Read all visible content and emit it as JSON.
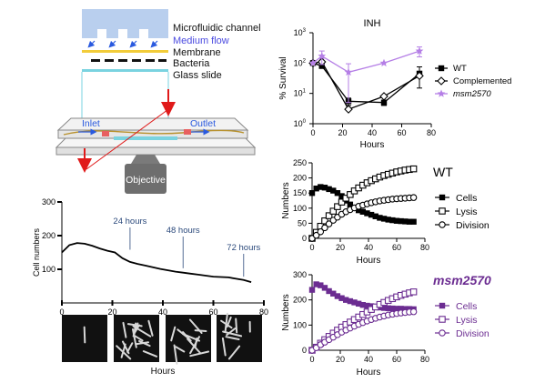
{
  "schematic": {
    "labels": {
      "channel": "Microfluidic channel",
      "flow": "Medium flow",
      "membrane": "Membrane",
      "bacteria": "Bacteria",
      "glass": "Glass slide",
      "inlet": "Inlet",
      "outlet": "Outlet",
      "objective": "Objective"
    },
    "colors": {
      "channel": "#b9cfee",
      "flow_text": "#4a4ae0",
      "membrane": "#f2cc3a",
      "glass": "#7ad3e0",
      "arrow_red": "#e01a1a",
      "objective": "#6e6e6e"
    }
  },
  "thumbnails": {
    "xlabel": "Hours",
    "count": 4
  },
  "chart_data": [
    {
      "id": "cell-numbers",
      "type": "line",
      "title": "",
      "xlabel": "",
      "ylabel": "Cell numbers",
      "xlim": [
        0,
        80
      ],
      "ylim": [
        0,
        300
      ],
      "xticks": [
        0,
        20,
        40,
        60,
        80
      ],
      "yticks": [
        100,
        200,
        300
      ],
      "series": [
        {
          "x": [
            0,
            3,
            6,
            9,
            12,
            15,
            18,
            21,
            24,
            27,
            30,
            33,
            36,
            39,
            42,
            45,
            48,
            51,
            54,
            57,
            60,
            63,
            66,
            69,
            72,
            75
          ],
          "y": [
            150,
            172,
            178,
            176,
            170,
            162,
            155,
            150,
            133,
            122,
            116,
            111,
            106,
            101,
            97,
            93,
            90,
            87,
            84,
            81,
            78,
            77,
            76,
            72,
            68,
            62
          ]
        }
      ],
      "annotations": [
        {
          "text": "24 hours",
          "x": 27,
          "y": 150
        },
        {
          "text": "48 hours",
          "x": 48,
          "y": 95
        },
        {
          "text": "72 hours",
          "x": 72,
          "y": 70
        }
      ],
      "colors": {
        "line": "#000000",
        "annotation": "#2c4a7c"
      }
    },
    {
      "id": "inh-survival",
      "type": "line",
      "title": "INH",
      "xlabel": "Hours",
      "ylabel": "% Survival",
      "xlim": [
        0,
        80
      ],
      "yscale": "log",
      "ylim": [
        1,
        1000
      ],
      "xticks": [
        0,
        20,
        40,
        60,
        80
      ],
      "ytick_labels": [
        "10^0",
        "10^1",
        "10^2",
        "10^3"
      ],
      "legend_position": "right",
      "series": [
        {
          "name": "WT",
          "marker": "filled-square",
          "color": "#000000",
          "x": [
            0,
            6,
            24,
            48,
            72
          ],
          "y": [
            100,
            80,
            5.5,
            5,
            45
          ],
          "err": [
            0,
            0,
            1.5,
            1,
            30
          ]
        },
        {
          "name": "Complemented",
          "marker": "open-diamond",
          "color": "#000000",
          "x": [
            0,
            6,
            24,
            48,
            72
          ],
          "y": [
            100,
            110,
            3,
            8,
            38
          ],
          "err": [
            0,
            0,
            0,
            0,
            0
          ]
        },
        {
          "name": "msm2570",
          "marker": "star",
          "color": "#b57fe6",
          "x": [
            0,
            6,
            24,
            48,
            72
          ],
          "y": [
            100,
            170,
            50,
            100,
            250
          ],
          "err": [
            0,
            80,
            45,
            0,
            90
          ]
        }
      ]
    },
    {
      "id": "wt-dynamics",
      "type": "line",
      "title": "WT",
      "xlabel": "Hours",
      "ylabel": "Numbers",
      "xlim": [
        0,
        80
      ],
      "ylim": [
        0,
        250
      ],
      "xticks": [
        0,
        20,
        40,
        60,
        80
      ],
      "yticks": [
        0,
        50,
        100,
        150,
        200,
        250
      ],
      "legend_position": "right",
      "color": "#000000",
      "series": [
        {
          "name": "Cells",
          "marker": "filled-square",
          "x": [
            0,
            3,
            6,
            9,
            12,
            15,
            18,
            21,
            24,
            27,
            30,
            33,
            36,
            39,
            42,
            45,
            48,
            51,
            54,
            57,
            60,
            63,
            66,
            69,
            72
          ],
          "y": [
            150,
            165,
            170,
            168,
            163,
            158,
            150,
            140,
            125,
            112,
            100,
            93,
            88,
            83,
            78,
            73,
            68,
            65,
            62,
            60,
            58,
            57,
            56,
            55,
            55
          ]
        },
        {
          "name": "Lysis",
          "marker": "open-square",
          "x": [
            0,
            3,
            6,
            9,
            12,
            15,
            18,
            21,
            24,
            27,
            30,
            33,
            36,
            39,
            42,
            45,
            48,
            51,
            54,
            57,
            60,
            63,
            66,
            69,
            72
          ],
          "y": [
            0,
            20,
            40,
            58,
            75,
            90,
            105,
            120,
            133,
            145,
            157,
            167,
            176,
            184,
            191,
            197,
            203,
            208,
            212,
            216,
            220,
            223,
            226,
            228,
            230
          ]
        },
        {
          "name": "Division",
          "marker": "open-circle",
          "x": [
            0,
            3,
            6,
            9,
            12,
            15,
            18,
            21,
            24,
            27,
            30,
            33,
            36,
            39,
            42,
            45,
            48,
            51,
            54,
            57,
            60,
            63,
            66,
            69,
            72
          ],
          "y": [
            0,
            10,
            22,
            35,
            48,
            60,
            70,
            80,
            88,
            95,
            101,
            106,
            110,
            114,
            118,
            121,
            124,
            126,
            128,
            130,
            131,
            132,
            133,
            134,
            135
          ]
        }
      ]
    },
    {
      "id": "msm2570-dynamics",
      "type": "line",
      "title": "msm2570",
      "xlabel": "Hours",
      "ylabel": "Numbers",
      "xlim": [
        0,
        80
      ],
      "ylim": [
        0,
        300
      ],
      "xticks": [
        0,
        20,
        40,
        60,
        80
      ],
      "yticks": [
        0,
        100,
        200,
        300
      ],
      "legend_position": "right",
      "color": "#6b2c91",
      "series": [
        {
          "name": "Cells",
          "marker": "filled-square",
          "x": [
            0,
            3,
            6,
            9,
            12,
            15,
            18,
            21,
            24,
            27,
            30,
            33,
            36,
            39,
            42,
            45,
            48,
            51,
            54,
            57,
            60,
            63,
            66,
            69,
            72
          ],
          "y": [
            240,
            262,
            258,
            248,
            235,
            225,
            215,
            207,
            200,
            195,
            190,
            185,
            180,
            177,
            175,
            172,
            170,
            168,
            167,
            166,
            165,
            165,
            164,
            164,
            163
          ]
        },
        {
          "name": "Lysis",
          "marker": "open-square",
          "x": [
            0,
            3,
            6,
            9,
            12,
            15,
            18,
            21,
            24,
            27,
            30,
            33,
            36,
            39,
            42,
            45,
            48,
            51,
            54,
            57,
            60,
            63,
            66,
            69,
            72
          ],
          "y": [
            0,
            12,
            28,
            42,
            55,
            68,
            80,
            92,
            102,
            112,
            122,
            132,
            142,
            152,
            162,
            172,
            182,
            190,
            198,
            205,
            212,
            218,
            223,
            228,
            232
          ]
        },
        {
          "name": "Division",
          "marker": "open-circle",
          "x": [
            0,
            3,
            6,
            9,
            12,
            15,
            18,
            21,
            24,
            27,
            30,
            33,
            36,
            39,
            42,
            45,
            48,
            51,
            54,
            57,
            60,
            63,
            66,
            69,
            72
          ],
          "y": [
            0,
            10,
            22,
            32,
            42,
            52,
            62,
            72,
            80,
            88,
            96,
            103,
            110,
            116,
            122,
            127,
            132,
            136,
            140,
            143,
            146,
            148,
            150,
            152,
            153
          ]
        }
      ]
    }
  ]
}
